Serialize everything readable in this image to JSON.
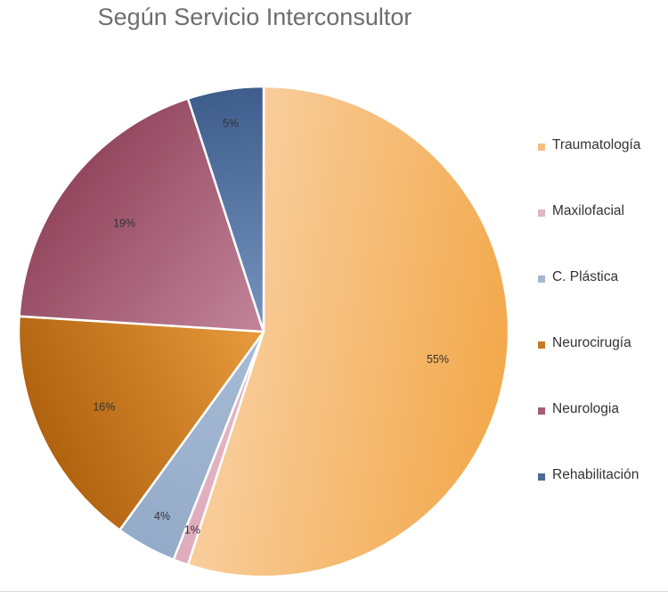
{
  "chart_data": {
    "type": "pie",
    "title": "Según Servicio Interconsultor",
    "categories": [
      "Traumatología",
      "Maxilofacial",
      "C. Plástica",
      "Neurocirugía",
      "Neurologia",
      "Rehabilitación"
    ],
    "values": [
      55,
      1,
      4,
      16,
      19,
      5
    ],
    "data_labels": [
      "55%",
      "1%",
      "4%",
      "16%",
      "19%",
      "5%"
    ],
    "start_angle_deg": 0,
    "direction": "clockwise",
    "colors": [
      [
        "#f3a94c",
        "#f8cd9b"
      ],
      [
        "#deacbd",
        "#e6b9c6"
      ],
      [
        "#94abc9",
        "#a9bdd6"
      ],
      [
        "#b0620f",
        "#f1a344"
      ],
      [
        "#93475f",
        "#c98ea3"
      ],
      [
        "#3e5d8c",
        "#7f9cc6"
      ]
    ],
    "legend_position": "right",
    "legend_swatch_colors": [
      "#f5c07e",
      "#e3b4c2",
      "#a4b8d2",
      "#c77a22",
      "#a65c73",
      "#4d6a96"
    ]
  }
}
